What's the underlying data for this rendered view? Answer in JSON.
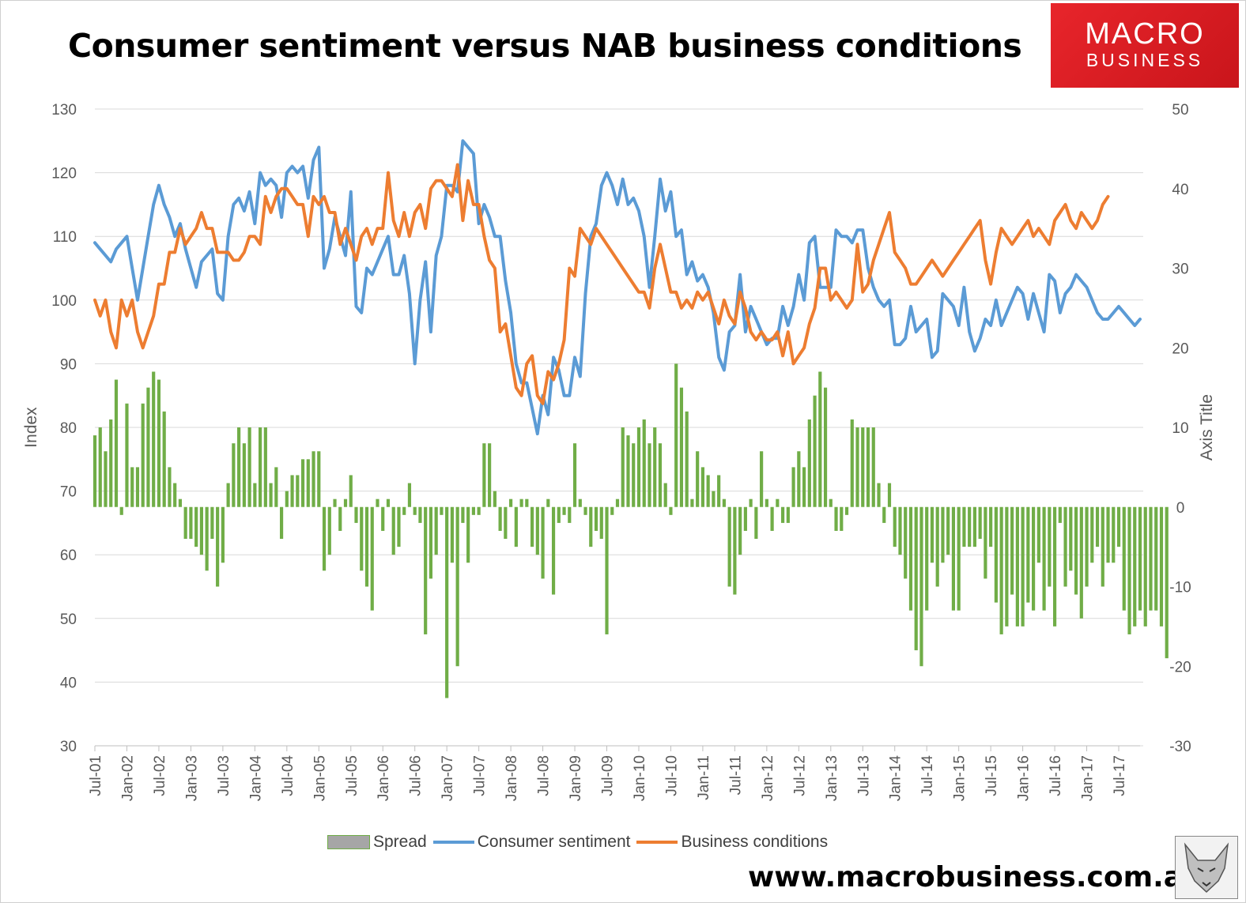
{
  "title": "Consumer sentiment versus NAB business conditions",
  "logo": {
    "line1": "MACRO",
    "line2": "BUSINESS"
  },
  "website": "www.macrobusiness.com.au",
  "colors": {
    "spread": "#70ad47",
    "sentiment": "#5b9bd5",
    "business": "#ed7d31",
    "legend_spread_fill": "#a6a6a6"
  },
  "chart_data": {
    "type": "bar+line",
    "title": "Consumer sentiment versus NAB business conditions",
    "ylabel": "Index",
    "y2label": "Axis Title",
    "ylim": [
      30,
      130
    ],
    "y2lim": [
      -30,
      50
    ],
    "yticks": [
      "30",
      "40",
      "50",
      "60",
      "70",
      "80",
      "90",
      "100",
      "110",
      "120",
      "130"
    ],
    "y2ticks": [
      "-30",
      "-20",
      "-10",
      "0",
      "10",
      "20",
      "30",
      "40",
      "50"
    ],
    "xtick_labels": [
      "Jul-01",
      "Jan-02",
      "Jul-02",
      "Jan-03",
      "Jul-03",
      "Jan-04",
      "Jul-04",
      "Jan-05",
      "Jul-05",
      "Jan-06",
      "Jul-06",
      "Jan-07",
      "Jul-07",
      "Jan-08",
      "Jul-08",
      "Jan-09",
      "Jul-09",
      "Jan-10",
      "Jul-10",
      "Jan-11",
      "Jul-11",
      "Jan-12",
      "Jul-12",
      "Jan-13",
      "Jul-13",
      "Jan-14",
      "Jul-14",
      "Jan-15",
      "Jul-15",
      "Jan-16",
      "Jul-16",
      "Jan-17",
      "Jul-17"
    ],
    "x_start": "Jul-01",
    "frequency": "monthly",
    "legend": [
      "Spread",
      "Consumer sentiment",
      "Business conditions"
    ],
    "series": [
      {
        "name": "Spread",
        "type": "bar",
        "axis": "right",
        "values": [
          9,
          10,
          7,
          11,
          16,
          -1,
          13,
          5,
          5,
          13,
          15,
          17,
          16,
          12,
          5,
          3,
          1,
          -4,
          -4,
          -5,
          -6,
          -8,
          -4,
          -10,
          -7,
          3,
          8,
          10,
          8,
          10,
          3,
          10,
          10,
          3,
          5,
          -4,
          2,
          4,
          4,
          6,
          6,
          7,
          7,
          -8,
          -6,
          1,
          -3,
          1,
          4,
          -2,
          -8,
          -10,
          -13,
          1,
          -3,
          1,
          -6,
          -5,
          -1,
          3,
          -1,
          -2,
          -16,
          -9,
          -6,
          -1,
          -24,
          -7,
          -20,
          -2,
          -7,
          -1,
          -1,
          8,
          8,
          2,
          -3,
          -4,
          1,
          -5,
          1,
          1,
          -5,
          -6,
          -9,
          1,
          -11,
          -2,
          -1,
          -2,
          8,
          1,
          -1,
          -5,
          -3,
          -4,
          -16,
          -1,
          1,
          10,
          9,
          8,
          10,
          11,
          8,
          10,
          8,
          3,
          -1,
          18,
          15,
          12,
          1,
          7,
          5,
          4,
          2,
          4,
          1,
          -10,
          -11,
          -6,
          -3,
          1,
          -4,
          7,
          1,
          -3,
          1,
          -2,
          -2,
          5,
          7,
          5,
          11,
          14,
          17,
          15,
          1,
          -3,
          -3,
          -1,
          11,
          10,
          10,
          10,
          10,
          3,
          -2,
          3,
          -5,
          -6,
          -9,
          -13,
          -18,
          -20,
          -13,
          -7,
          -10,
          -7,
          -6,
          -13,
          -13,
          -5,
          -5,
          -5,
          -4,
          -9,
          -5,
          -12,
          -16,
          -15,
          -11,
          -15,
          -15,
          -12,
          -13,
          -7,
          -13,
          -10,
          -15,
          -2,
          -10,
          -8,
          -11,
          -14,
          -10,
          -7,
          -5,
          -10,
          -7,
          -7,
          -5,
          -13,
          -16,
          -15,
          -13,
          -15,
          -13,
          -13,
          -15,
          -19
        ]
      },
      {
        "name": "Consumer sentiment",
        "type": "line",
        "axis": "left",
        "values": [
          109,
          108,
          107,
          106,
          108,
          109,
          110,
          105,
          100,
          105,
          110,
          115,
          118,
          115,
          113,
          110,
          112,
          108,
          105,
          102,
          106,
          107,
          108,
          101,
          100,
          110,
          115,
          116,
          114,
          117,
          112,
          120,
          118,
          119,
          118,
          113,
          120,
          121,
          120,
          121,
          116,
          122,
          124,
          105,
          108,
          113,
          110,
          107,
          117,
          99,
          98,
          105,
          104,
          106,
          108,
          110,
          104,
          104,
          107,
          101,
          90,
          100,
          106,
          95,
          107,
          110,
          118,
          118,
          117,
          125,
          124,
          123,
          112,
          115,
          113,
          110,
          110,
          103,
          98,
          90,
          87,
          87,
          83,
          79,
          85,
          82,
          91,
          89,
          85,
          85,
          91,
          88,
          101,
          110,
          112,
          118,
          120,
          118,
          115,
          119,
          115,
          116,
          114,
          110,
          102,
          110,
          119,
          114,
          117,
          110,
          111,
          104,
          106,
          103,
          104,
          102,
          98,
          91,
          89,
          95,
          96,
          104,
          95,
          99,
          97,
          95,
          93,
          94,
          94,
          99,
          96,
          99,
          104,
          100,
          109,
          110,
          102,
          102,
          102,
          111,
          110,
          110,
          109,
          111,
          111,
          105,
          102,
          100,
          99,
          100,
          93,
          93,
          94,
          99,
          95,
          96,
          97,
          91,
          92,
          101,
          100,
          99,
          96,
          102,
          95,
          92,
          94,
          97,
          96,
          100,
          96,
          98,
          100,
          102,
          101,
          97,
          101,
          98,
          95,
          104,
          103,
          98,
          101,
          102,
          104,
          103,
          102,
          100,
          98,
          97,
          97,
          98,
          99,
          98,
          97,
          96,
          97
        ]
      },
      {
        "name": "Business conditions",
        "type": "line",
        "axis": "right",
        "values": [
          26,
          24,
          26,
          22,
          20,
          26,
          24,
          26,
          22,
          20,
          22,
          24,
          28,
          28,
          32,
          32,
          35,
          33,
          34,
          35,
          37,
          35,
          35,
          32,
          32,
          32,
          31,
          31,
          32,
          34,
          34,
          33,
          39,
          37,
          39,
          40,
          40,
          39,
          38,
          38,
          34,
          39,
          38,
          39,
          37,
          37,
          33,
          35,
          33,
          31,
          34,
          35,
          33,
          35,
          35,
          42,
          36,
          34,
          37,
          34,
          37,
          38,
          35,
          40,
          41,
          41,
          40,
          39,
          43,
          36,
          41,
          38,
          38,
          34,
          31,
          30,
          22,
          23,
          19,
          15,
          14,
          18,
          19,
          14,
          13,
          17,
          16,
          18,
          21,
          30,
          29,
          35,
          34,
          33,
          35,
          34,
          33,
          32,
          31,
          30,
          29,
          28,
          27,
          27,
          25,
          30,
          33,
          30,
          27,
          27,
          25,
          26,
          25,
          27,
          26,
          27,
          25,
          23,
          26,
          24,
          23,
          27,
          25,
          22,
          21,
          22,
          21,
          21,
          22,
          19,
          22,
          18,
          19,
          20,
          23,
          25,
          30,
          30,
          26,
          27,
          26,
          25,
          26,
          33,
          27,
          28,
          31,
          33,
          35,
          37,
          32,
          31,
          30,
          28,
          28,
          29,
          30,
          31,
          30,
          29,
          30,
          31,
          32,
          33,
          34,
          35,
          36,
          31,
          28,
          32,
          35,
          34,
          33,
          34,
          35,
          36,
          34,
          35,
          34,
          33,
          36,
          37,
          38,
          36,
          35,
          37,
          36,
          35,
          36,
          38,
          39
        ]
      }
    ]
  }
}
